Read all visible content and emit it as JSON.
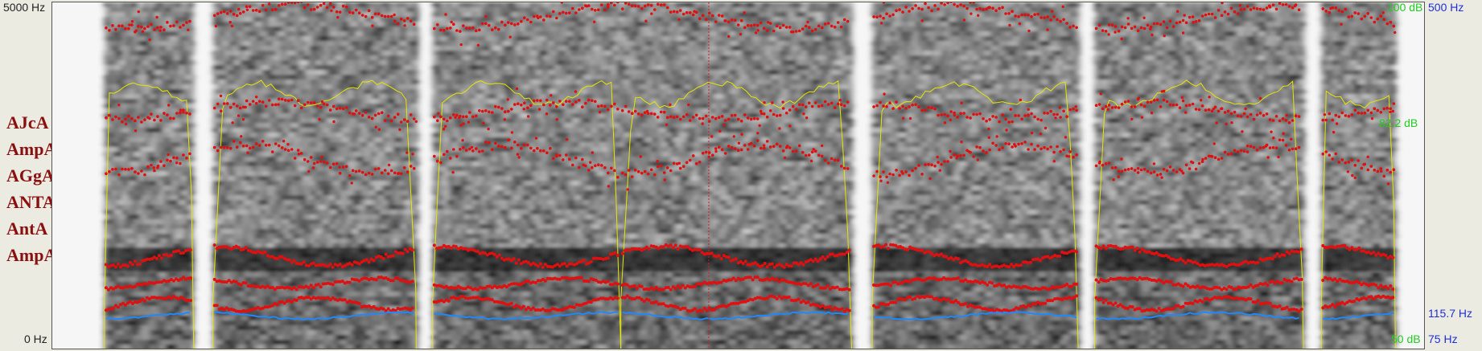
{
  "left_axis": {
    "top": "5000 Hz",
    "bottom": "0 Hz"
  },
  "right_axis": {
    "intensity_top": "100 dB",
    "intensity_mid": "82.2 dB",
    "intensity_bottom": "50 dB",
    "pitch_top": "500 Hz",
    "pitch_mark": "115.7 Hz",
    "pitch_bottom": "75 Hz"
  },
  "tiers": [
    "AJcA",
    "AmpA",
    "AGgA",
    "ANTA",
    "AntA",
    "AmpA"
  ],
  "colors": {
    "background": "#ecebe2",
    "formant": "#e01010",
    "pitch": "#1e88ff",
    "intensity": "#e6e600",
    "cursor": "#d02020",
    "intensity_label": "#22cc22",
    "pitch_label": "#1f2fd6",
    "tier_label": "#8a1010"
  },
  "segments": [
    {
      "start": 0.038,
      "end": 0.103
    },
    {
      "start": 0.117,
      "end": 0.265
    },
    {
      "start": 0.277,
      "end": 0.414
    },
    {
      "start": 0.414,
      "end": 0.582
    },
    {
      "start": 0.597,
      "end": 0.747
    },
    {
      "start": 0.759,
      "end": 0.911
    },
    {
      "start": 0.924,
      "end": 0.978
    }
  ],
  "cursor_fraction": 0.478
}
